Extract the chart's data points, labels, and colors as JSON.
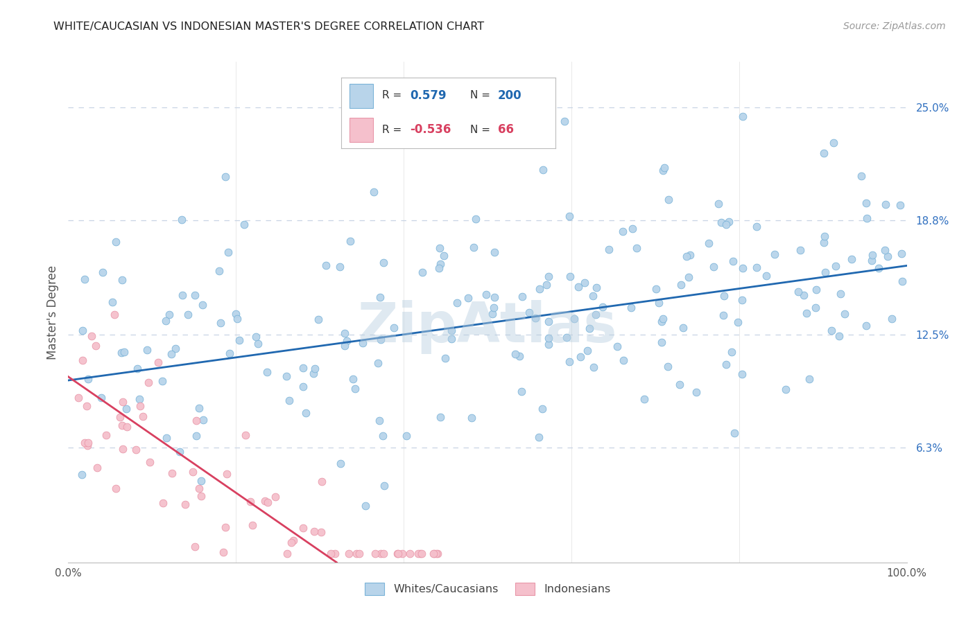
{
  "title": "WHITE/CAUCASIAN VS INDONESIAN MASTER'S DEGREE CORRELATION CHART",
  "source_text": "Source: ZipAtlas.com",
  "ylabel": "Master's Degree",
  "y_tick_labels_right": [
    "6.3%",
    "12.5%",
    "18.8%",
    "25.0%"
  ],
  "y_tick_positions_right": [
    0.063,
    0.125,
    0.188,
    0.25
  ],
  "xlim": [
    0.0,
    1.0
  ],
  "ylim": [
    0.0,
    0.275
  ],
  "blue_color": "#7ab3d8",
  "blue_fill": "#b8d4ea",
  "pink_color": "#e896a8",
  "pink_fill": "#f5c0cc",
  "line_blue": "#2068b0",
  "line_pink": "#d84060",
  "legend_R_blue": "0.579",
  "legend_N_blue": "200",
  "legend_R_pink": "-0.536",
  "legend_N_pink": "66",
  "watermark": "ZipAtlas",
  "background_color": "#ffffff",
  "grid_color": "#c8d4e4",
  "blue_trend_y_start": 0.1,
  "blue_trend_y_end": 0.163,
  "pink_trend_y_start": 0.102,
  "pink_trend_x_end": 0.32,
  "pink_trend_y_end": 0.0,
  "title_fontsize": 11.5,
  "source_fontsize": 10,
  "tick_fontsize": 11,
  "right_tick_color": "#3070c0"
}
